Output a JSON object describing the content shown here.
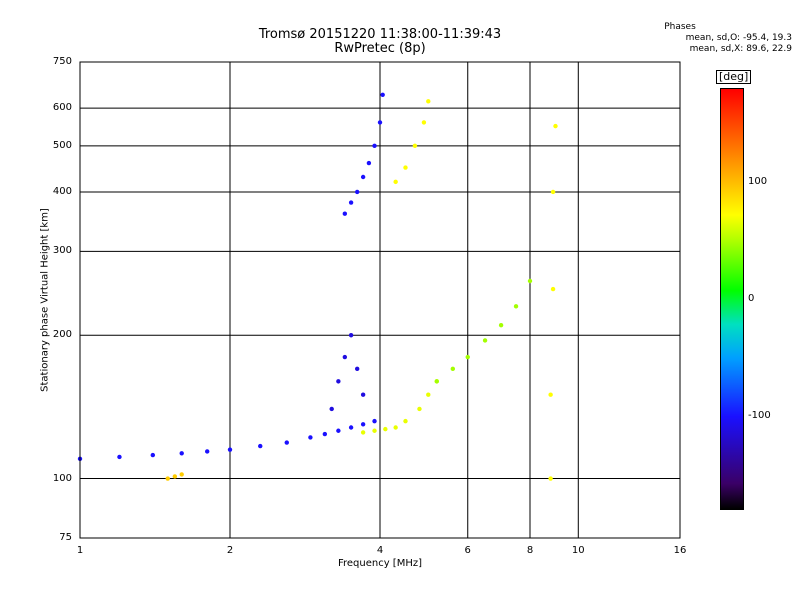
{
  "chart_data": {
    "type": "scatter",
    "title": "Tromsø 20151220 11:38:00-11:39:43",
    "subtitle": "RwPretec (8p)",
    "xlabel": "Frequency [MHz]",
    "ylabel": "Stationary phase Virtual Height [km]",
    "x_scale": "log",
    "y_scale": "log",
    "xlim": [
      1,
      16
    ],
    "ylim": [
      75,
      750
    ],
    "x_ticks": [
      "1",
      "2",
      "4",
      "6",
      "8",
      "10",
      "16"
    ],
    "x_tick_values": [
      1,
      2,
      4,
      6,
      8,
      10,
      16
    ],
    "x_gridlines": [
      1,
      2,
      4,
      6,
      8,
      10
    ],
    "y_ticks": [
      "750",
      "600",
      "500",
      "400",
      "300",
      "200",
      "100",
      "75"
    ],
    "y_tick_values": [
      750,
      600,
      500,
      400,
      300,
      200,
      100,
      75
    ],
    "y_gridlines": [
      100,
      200,
      300,
      400,
      500,
      600
    ],
    "grid": true,
    "legend": {
      "heading": "Phases",
      "o_mode": "mean, sd,O: -95.4, 19.3",
      "x_mode": "mean, sd,X:  89.6, 22.9"
    },
    "colorbar": {
      "unit": "[deg]",
      "ticks": [
        "100",
        "0",
        "-100"
      ],
      "tick_values": [
        100,
        0,
        -100
      ],
      "range": [
        -180,
        180
      ],
      "colors": [
        "#000000",
        "#3a0066",
        "#1a10ff",
        "#00a0ff",
        "#00ff00",
        "#ffff00",
        "#ff9900",
        "#ff0000"
      ]
    },
    "traces": [
      {
        "name": "",
        "x": [
          1.0,
          1.2,
          1.4,
          1.6,
          1.8,
          2.0,
          2.3,
          2.6,
          2.9,
          3.1,
          3.3,
          3.5,
          3.7,
          3.9
        ],
        "y": [
          110,
          111,
          112,
          113,
          114,
          115,
          117,
          119,
          122,
          124,
          126,
          128,
          130,
          132
        ],
        "phase": -100
      },
      {
        "name": "",
        "x": [
          3.2,
          3.3,
          3.4,
          3.5,
          3.6,
          3.7
        ],
        "y": [
          140,
          160,
          180,
          200,
          170,
          150
        ],
        "phase": -110
      },
      {
        "name": "",
        "x": [
          3.4,
          3.5,
          3.6,
          3.7,
          3.8,
          3.9,
          4.0,
          4.05
        ],
        "y": [
          360,
          380,
          400,
          430,
          460,
          500,
          560,
          640
        ],
        "phase": -100
      },
      {
        "name": "",
        "x": [
          3.7,
          3.9,
          4.1,
          4.3,
          4.5,
          4.8,
          5.0,
          5.2
        ],
        "y": [
          125,
          126,
          127,
          128,
          132,
          140,
          150,
          160
        ],
        "phase": 90
      },
      {
        "name": "",
        "x": [
          4.3,
          4.5,
          4.7,
          4.9,
          5.0
        ],
        "y": [
          420,
          450,
          500,
          560,
          620
        ],
        "phase": 100
      },
      {
        "name": "",
        "x": [
          5.2,
          5.6,
          6.0,
          6.5,
          7.0,
          7.5,
          8.0
        ],
        "y": [
          160,
          170,
          180,
          195,
          210,
          230,
          260
        ],
        "phase": 60
      },
      {
        "name": "",
        "x": [
          8.8,
          8.8,
          8.9,
          8.9,
          9.0
        ],
        "y": [
          100,
          150,
          250,
          400,
          550
        ],
        "phase": 100
      },
      {
        "name": "",
        "x": [
          1.5,
          1.55,
          1.6
        ],
        "y": [
          100,
          101,
          102
        ],
        "phase": 120
      }
    ]
  }
}
